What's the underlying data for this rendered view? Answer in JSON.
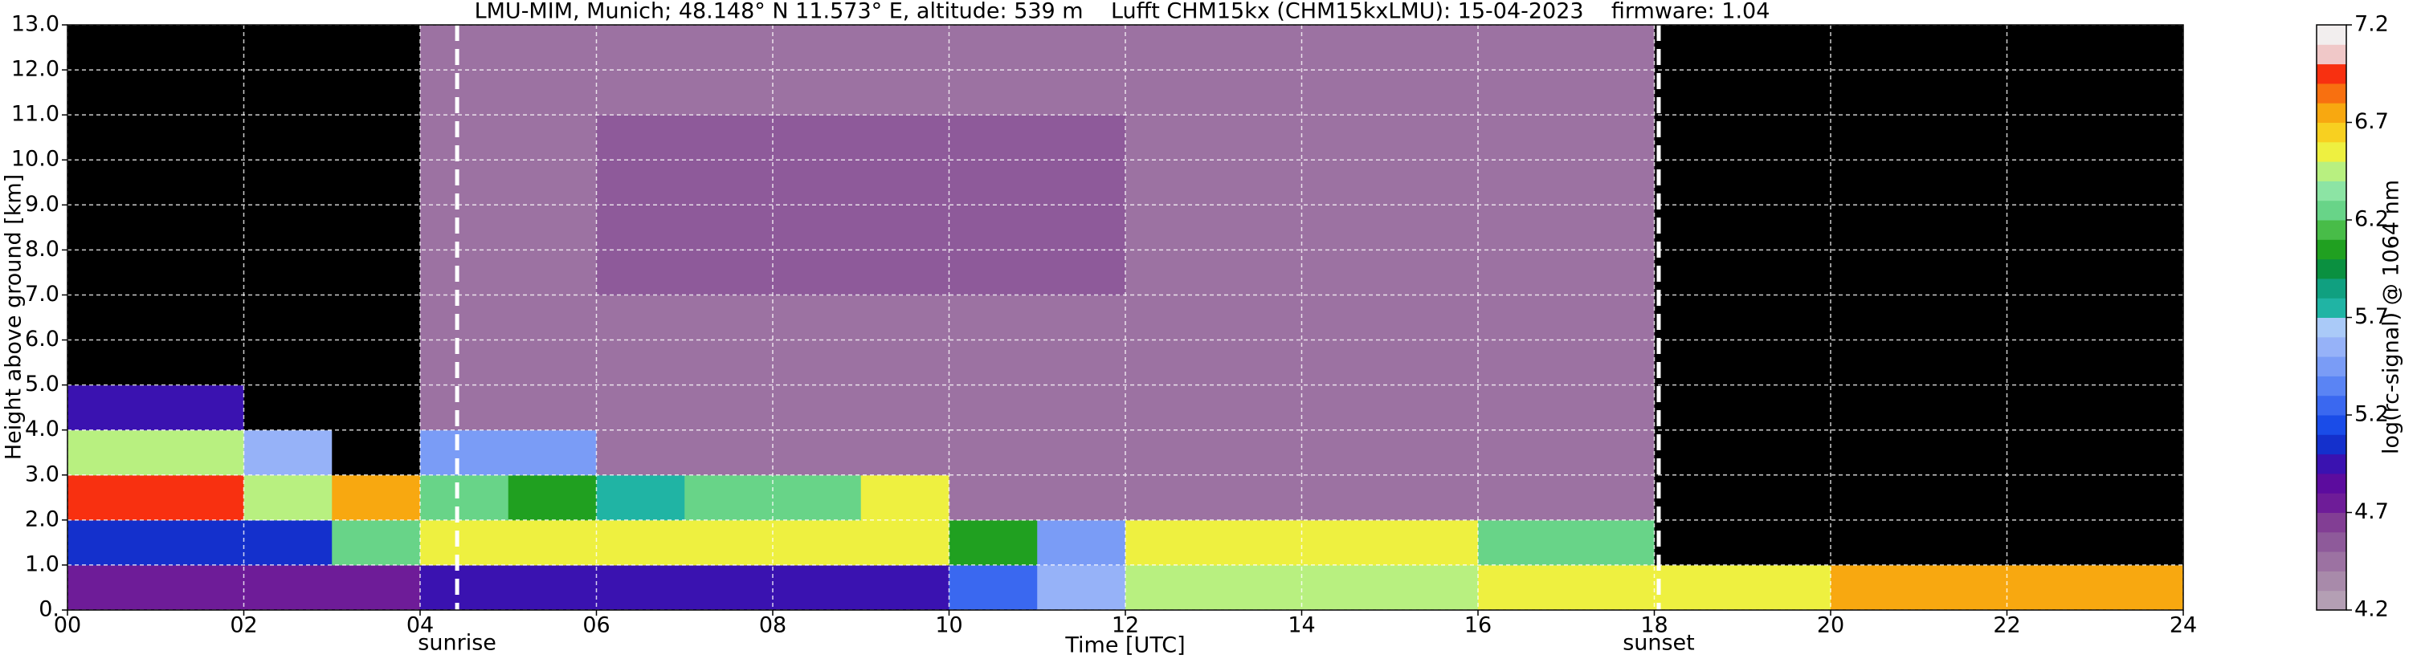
{
  "chart_data": {
    "type": "heatmap",
    "title": "LMU-MIM, Munich; 48.148° N 11.573° E, altitude: 539 m    Lufft CHM15kx (CHM15kxLMU): 15-04-2023    firmware: 1.04",
    "x_label": "Time [UTC]",
    "y_label": "Height above ground [km]",
    "colorbar_label": "log(rc-signal) @ 1064 nm",
    "xbins": [
      0,
      1,
      2,
      3,
      4,
      5,
      6,
      7,
      8,
      9,
      10,
      11,
      12,
      13,
      14,
      15,
      16,
      17,
      18,
      19,
      20,
      21,
      22,
      23,
      24
    ],
    "ybins": [
      0,
      1,
      2,
      3,
      4,
      5,
      6,
      7,
      8,
      9,
      10,
      11,
      12,
      13
    ],
    "z": [
      [
        4.8,
        4.8,
        4.8,
        4.8,
        5.0,
        5.0,
        5.0,
        5.0,
        5.0,
        5.0,
        5.3,
        5.6,
        6.4,
        6.4,
        6.4,
        6.4,
        6.5,
        6.5,
        6.6,
        6.6,
        6.7,
        6.7,
        6.7,
        6.7
      ],
      [
        5.1,
        5.1,
        5.1,
        6.2,
        6.6,
        6.5,
        6.5,
        6.5,
        6.6,
        6.6,
        6.1,
        5.4,
        6.5,
        6.5,
        6.5,
        6.5,
        6.3,
        6.3,
        4.1,
        4.1,
        4.1,
        4.1,
        4.1,
        4.1
      ],
      [
        6.9,
        6.9,
        6.4,
        6.8,
        6.3,
        6.0,
        5.8,
        6.3,
        6.3,
        6.6,
        4.4,
        4.4,
        4.4,
        4.4,
        4.4,
        4.4,
        4.4,
        4.4,
        4.1,
        4.1,
        4.1,
        4.1,
        4.1,
        4.1
      ],
      [
        6.4,
        6.4,
        5.6,
        4.1,
        5.5,
        5.5,
        4.4,
        4.4,
        4.4,
        4.4,
        4.4,
        4.4,
        4.4,
        4.4,
        4.4,
        4.4,
        4.4,
        4.4,
        4.1,
        4.1,
        4.1,
        4.1,
        4.1,
        4.1
      ],
      [
        5.0,
        5.0,
        4.1,
        4.1,
        4.4,
        4.4,
        4.4,
        4.4,
        4.4,
        4.4,
        4.4,
        4.4,
        4.4,
        4.4,
        4.4,
        4.4,
        4.4,
        4.4,
        4.1,
        4.1,
        4.1,
        4.1,
        4.1,
        4.1
      ],
      [
        4.1,
        4.1,
        4.1,
        4.1,
        4.5,
        4.5,
        4.5,
        4.5,
        4.5,
        4.5,
        4.5,
        4.5,
        4.5,
        4.5,
        4.5,
        4.5,
        4.5,
        4.5,
        4.1,
        4.1,
        4.1,
        4.1,
        4.1,
        4.1
      ],
      [
        4.1,
        4.1,
        4.1,
        4.1,
        4.5,
        4.5,
        4.5,
        4.5,
        4.5,
        4.5,
        4.5,
        4.5,
        4.5,
        4.5,
        4.5,
        4.5,
        4.5,
        4.5,
        4.1,
        4.1,
        4.1,
        4.1,
        4.1,
        4.1
      ],
      [
        4.1,
        4.1,
        4.1,
        4.1,
        4.5,
        4.5,
        4.6,
        4.6,
        4.6,
        4.6,
        4.6,
        4.6,
        4.5,
        4.5,
        4.5,
        4.5,
        4.5,
        4.5,
        4.1,
        4.1,
        4.1,
        4.1,
        4.1,
        4.1
      ],
      [
        4.1,
        4.1,
        4.1,
        4.1,
        4.5,
        4.5,
        4.6,
        4.6,
        4.6,
        4.6,
        4.6,
        4.6,
        4.5,
        4.5,
        4.5,
        4.5,
        4.5,
        4.5,
        4.1,
        4.1,
        4.1,
        4.1,
        4.1,
        4.1
      ],
      [
        4.1,
        4.1,
        4.1,
        4.1,
        4.5,
        4.5,
        4.6,
        4.6,
        4.6,
        4.6,
        4.6,
        4.6,
        4.5,
        4.5,
        4.5,
        4.5,
        4.5,
        4.5,
        4.1,
        4.1,
        4.1,
        4.1,
        4.1,
        4.1
      ],
      [
        4.1,
        4.1,
        4.1,
        4.1,
        4.5,
        4.5,
        4.6,
        4.6,
        4.6,
        4.6,
        4.6,
        4.6,
        4.5,
        4.5,
        4.5,
        4.5,
        4.5,
        4.5,
        4.1,
        4.1,
        4.1,
        4.1,
        4.1,
        4.1
      ],
      [
        4.1,
        4.1,
        4.1,
        4.1,
        4.5,
        4.5,
        4.5,
        4.5,
        4.5,
        4.5,
        4.5,
        4.5,
        4.5,
        4.5,
        4.5,
        4.5,
        4.5,
        4.5,
        4.1,
        4.1,
        4.1,
        4.1,
        4.1,
        4.1
      ],
      [
        4.1,
        4.1,
        4.1,
        4.1,
        4.5,
        4.5,
        4.5,
        4.5,
        4.5,
        4.5,
        4.5,
        4.5,
        4.5,
        4.5,
        4.5,
        4.5,
        4.5,
        4.5,
        4.1,
        4.1,
        4.1,
        4.1,
        4.1,
        4.1
      ]
    ],
    "xlim": [
      0,
      24
    ],
    "ylim": [
      0,
      13
    ],
    "clim": [
      4.2,
      7.2
    ],
    "xticks": [
      {
        "value": 0,
        "label": "00"
      },
      {
        "value": 2,
        "label": "02"
      },
      {
        "value": 4,
        "label": "04"
      },
      {
        "value": 6,
        "label": "06"
      },
      {
        "value": 8,
        "label": "08"
      },
      {
        "value": 10,
        "label": "10"
      },
      12,
      14,
      16,
      18,
      20,
      22,
      24
    ],
    "yticks": [
      {
        "value": 0,
        "label": "0."
      },
      {
        "value": 1,
        "label": "1.0"
      },
      {
        "value": 2,
        "label": "2.0"
      },
      {
        "value": 3,
        "label": "3.0"
      },
      {
        "value": 4,
        "label": "4.0"
      },
      {
        "value": 5,
        "label": "5.0"
      },
      {
        "value": 6,
        "label": "6.0"
      },
      {
        "value": 7,
        "label": "7.0"
      },
      {
        "value": 8,
        "label": "8.0"
      },
      {
        "value": 9,
        "label": "9.0"
      },
      {
        "value": 10,
        "label": "10.0"
      },
      {
        "value": 11,
        "label": "11.0"
      },
      {
        "value": 12,
        "label": "12.0"
      },
      {
        "value": 13,
        "label": "13.0"
      }
    ],
    "cticks": [
      4.2,
      4.7,
      5.2,
      5.7,
      6.2,
      6.7,
      7.2
    ],
    "grid": true,
    "grid_color": "#ffffff",
    "under_color": "#000000",
    "colors": [
      "#b49fb4",
      "#a88aaa",
      "#9c72a2",
      "#8e5a9a",
      "#823e94",
      "#6e1c98",
      "#5c0c9e",
      "#3a12b0",
      "#1430cc",
      "#1a4ce8",
      "#3a68f0",
      "#5a84f4",
      "#7a9cf6",
      "#96b2f8",
      "#aacaf8",
      "#20b4a4",
      "#10a080",
      "#0a9040",
      "#20a020",
      "#48bc48",
      "#68d488",
      "#8ce4a4",
      "#b8f080",
      "#eef040",
      "#f8d020",
      "#f8a810",
      "#f87010",
      "#f83010",
      "#f0c8c8",
      "#f2eeee"
    ],
    "annotations": [
      {
        "text": "sunrise",
        "x": 4.42
      },
      {
        "text": "sunset",
        "x": 18.05
      }
    ],
    "annotation_color": "#ffffff"
  }
}
